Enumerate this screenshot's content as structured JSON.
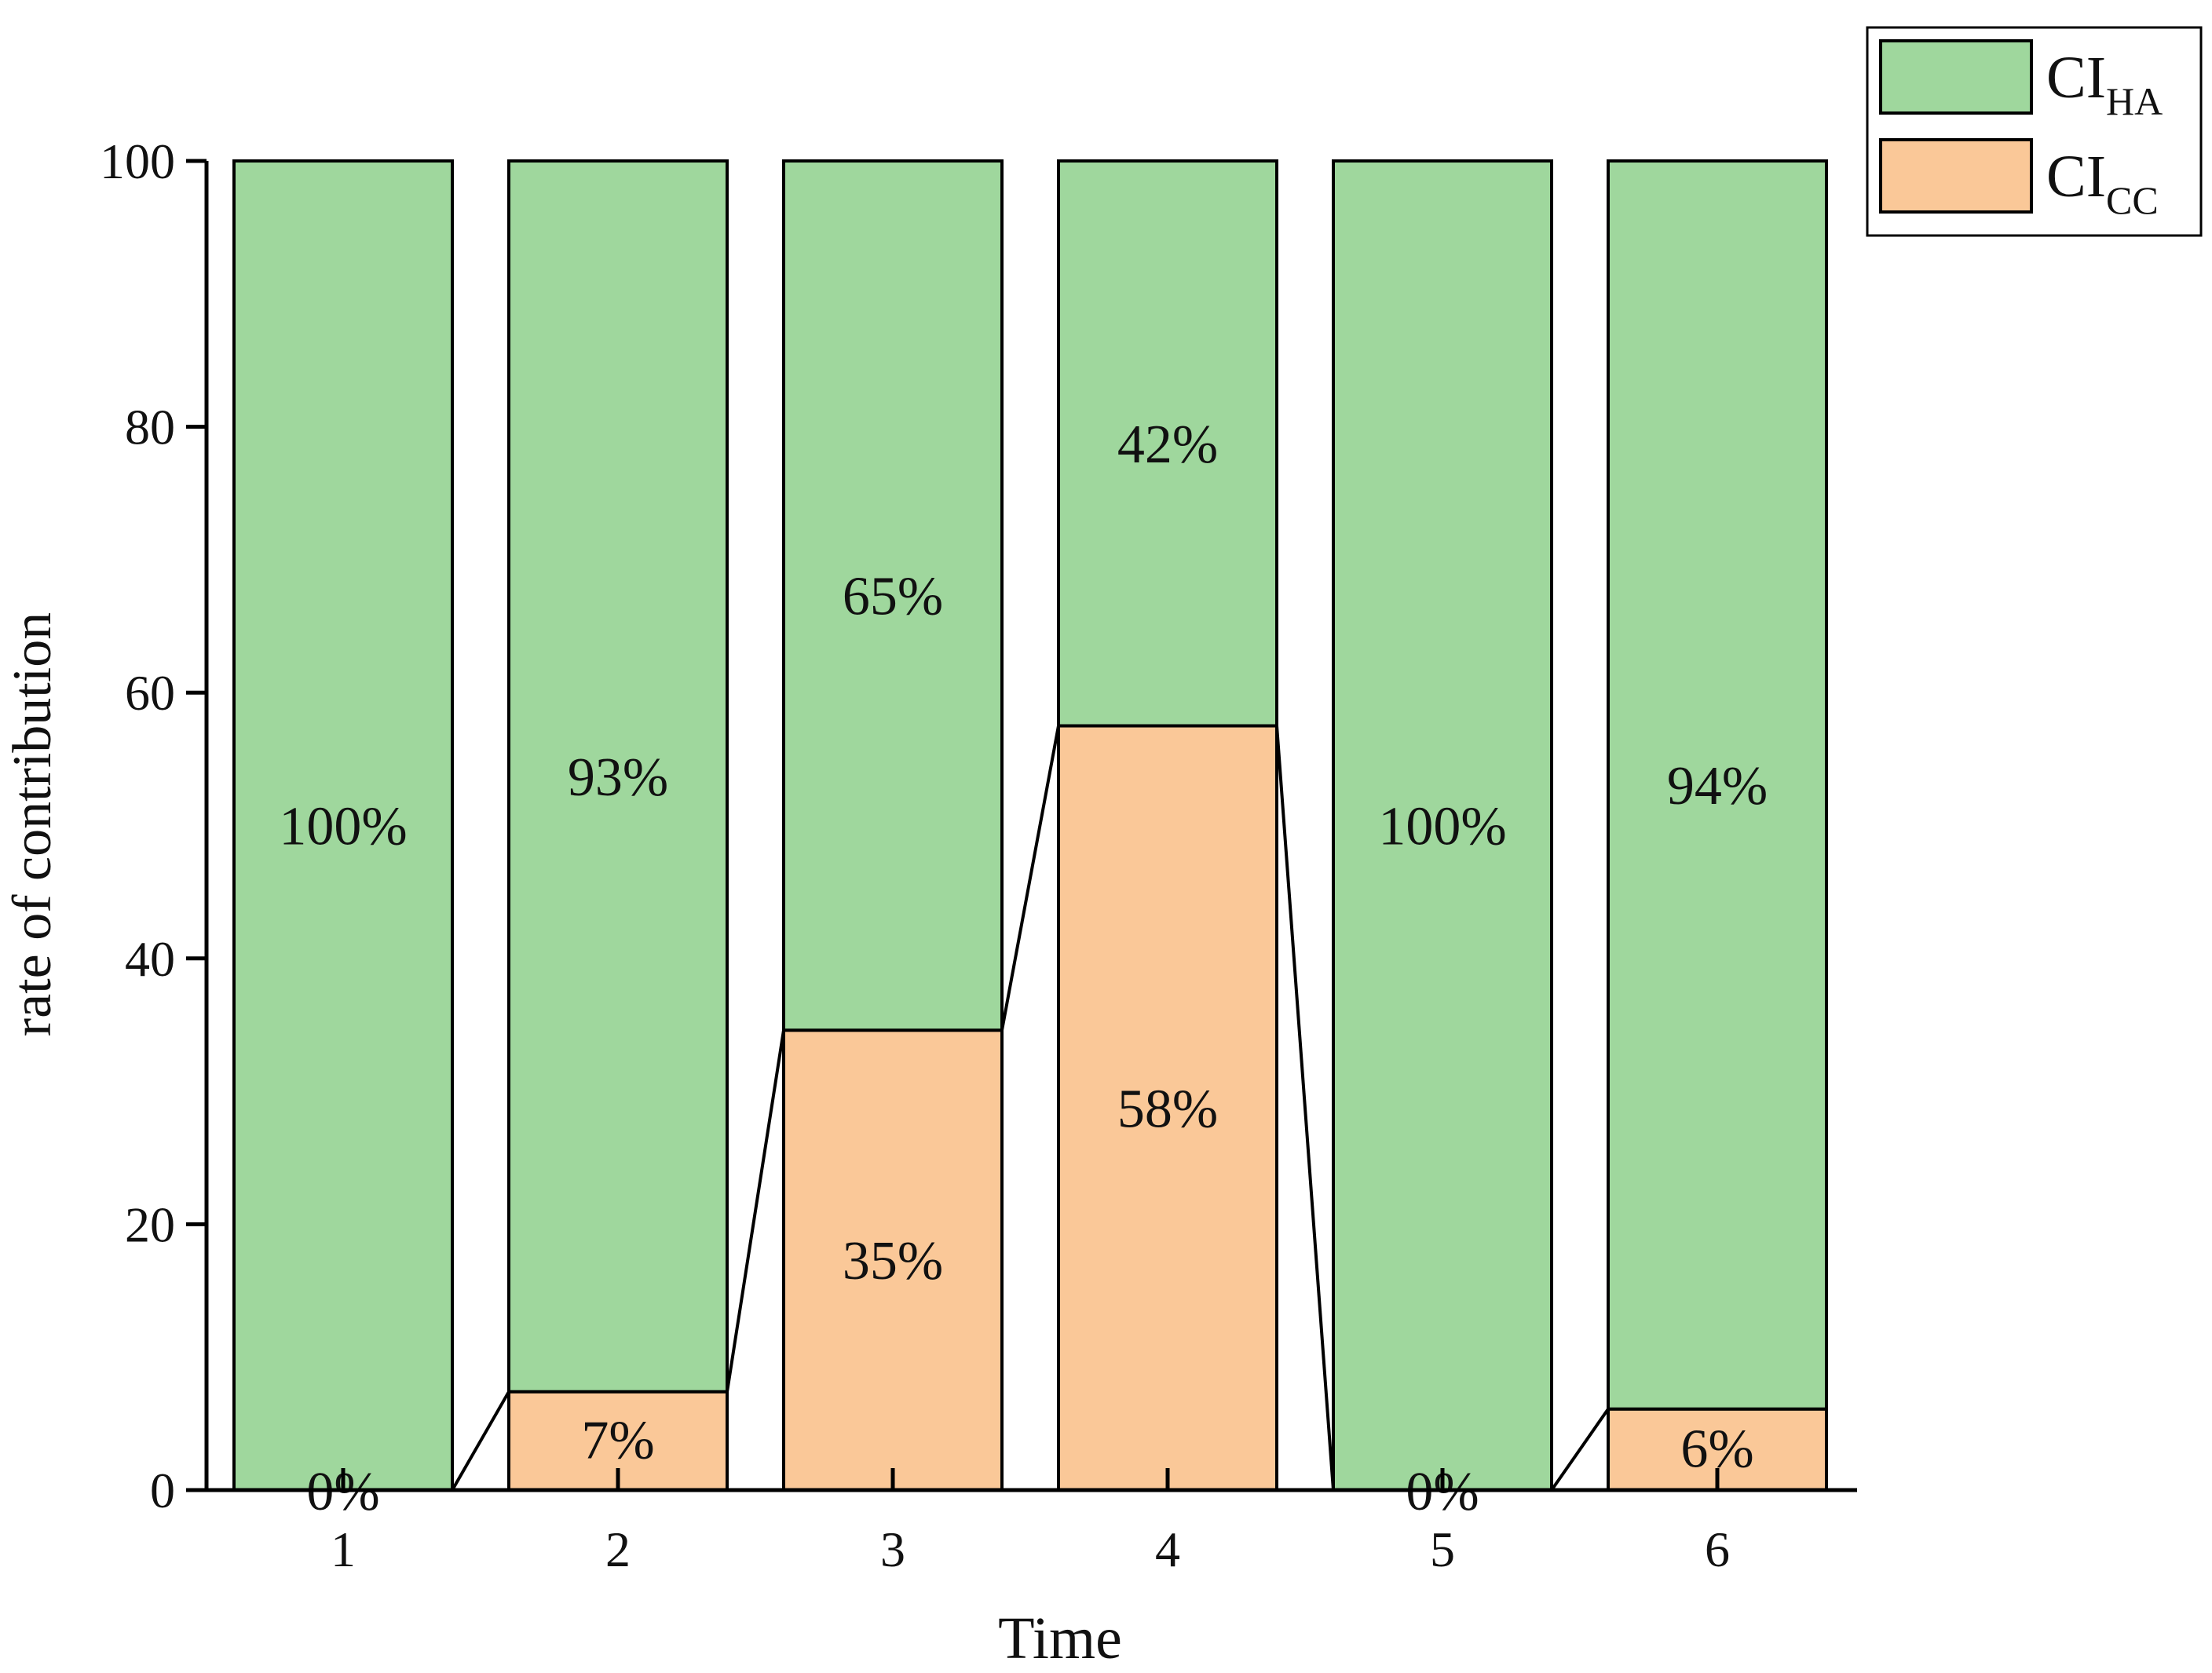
{
  "chart_data": {
    "type": "bar",
    "stacked": true,
    "categories": [
      "1",
      "2",
      "3",
      "4",
      "5",
      "6"
    ],
    "series": [
      {
        "name_main": "CI",
        "name_sub": "CC",
        "values": [
          0,
          7.4,
          34.6,
          57.5,
          0,
          6.1
        ],
        "labels": [
          "0%",
          "7%",
          "35%",
          "58%",
          "0%",
          "6%"
        ],
        "color": "#fac898"
      },
      {
        "name_main": "CI",
        "name_sub": "HA",
        "values": [
          100,
          92.6,
          65.4,
          42.5,
          100,
          93.9
        ],
        "labels": [
          "100%",
          "93%",
          "65%",
          "42%",
          "100%",
          "94%"
        ],
        "color": "#9fd79d"
      }
    ],
    "xlabel": "Time",
    "ylabel": "rate of contribution",
    "ylim": [
      0,
      100
    ],
    "yticks": [
      "0",
      "20",
      "40",
      "60",
      "80",
      "100"
    ],
    "connector_lines": true,
    "grid": false,
    "legend_position": "top-right, outside plot"
  }
}
